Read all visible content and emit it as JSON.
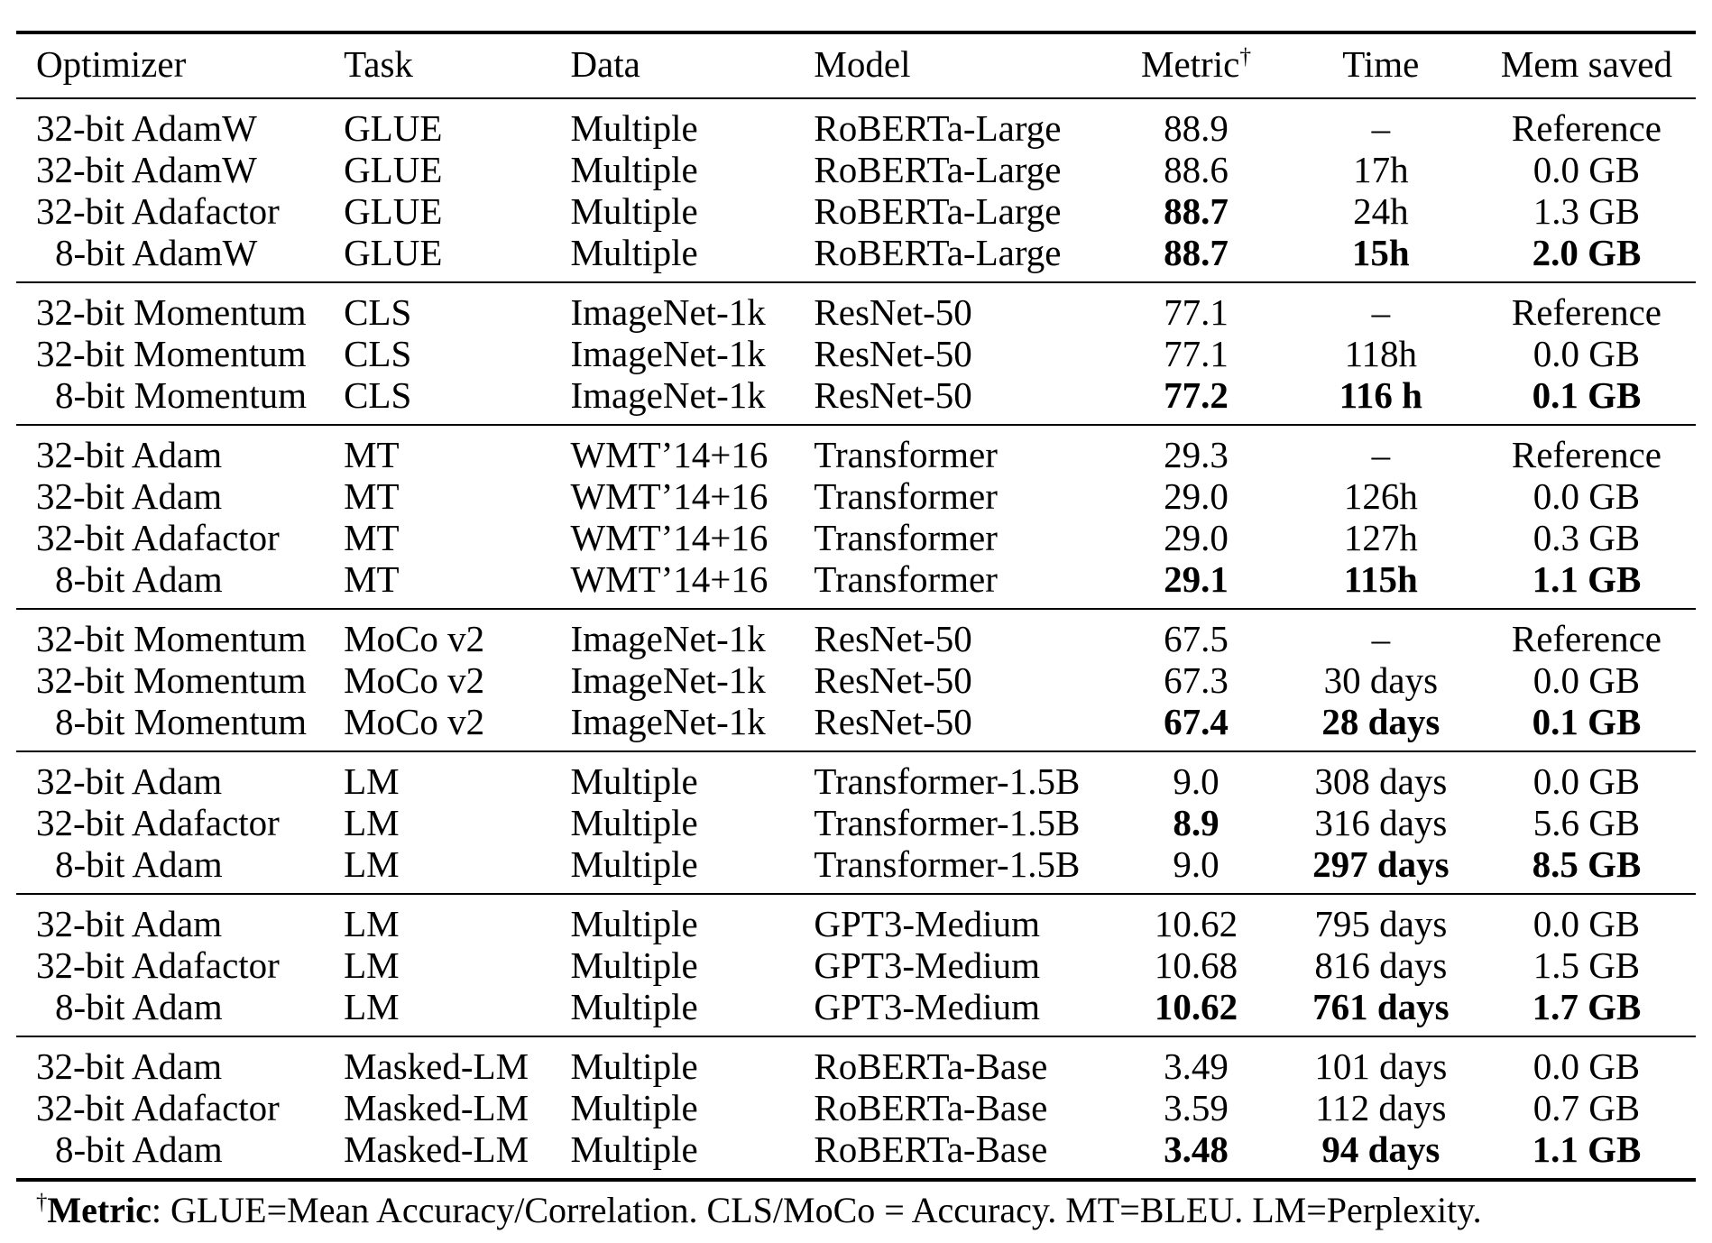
{
  "page": {
    "background": "#ffffff",
    "text_color": "#000000",
    "rule_color": "#000000"
  },
  "table": {
    "columns": [
      {
        "label": "Optimizer",
        "align": "left"
      },
      {
        "label": "Task",
        "align": "left"
      },
      {
        "label": "Data",
        "align": "left"
      },
      {
        "label": "Model",
        "align": "left"
      },
      {
        "label": "Metric",
        "sup": "†",
        "align": "center"
      },
      {
        "label": "Time",
        "align": "center"
      },
      {
        "label": "Mem saved",
        "align": "center"
      }
    ],
    "sections": [
      {
        "id": "glue",
        "rows": [
          [
            "32-bit AdamW",
            "GLUE",
            "Multiple",
            "RoBERTa-Large",
            "88.9",
            "–",
            "Reference"
          ],
          [
            "32-bit AdamW",
            "GLUE",
            "Multiple",
            "RoBERTa-Large",
            "88.6",
            "17h",
            "0.0 GB"
          ],
          [
            "32-bit Adafactor",
            "GLUE",
            "Multiple",
            "RoBERTa-Large",
            {
              "text": "88.7",
              "bold": true
            },
            "24h",
            "1.3 GB"
          ],
          [
            "8-bit AdamW",
            "GLUE",
            "Multiple",
            "RoBERTa-Large",
            {
              "text": "88.7",
              "bold": true
            },
            {
              "text": "15h",
              "bold": true
            },
            {
              "text": "2.0 GB",
              "bold": true
            }
          ]
        ]
      },
      {
        "id": "cls",
        "rows": [
          [
            "32-bit Momentum",
            "CLS",
            "ImageNet-1k",
            "ResNet-50",
            "77.1",
            "–",
            "Reference"
          ],
          [
            "32-bit Momentum",
            "CLS",
            "ImageNet-1k",
            "ResNet-50",
            "77.1",
            "118h",
            "0.0 GB"
          ],
          [
            "8-bit Momentum",
            "CLS",
            "ImageNet-1k",
            "ResNet-50",
            {
              "text": "77.2",
              "bold": true
            },
            {
              "text": "116 h",
              "bold": true
            },
            {
              "text": "0.1 GB",
              "bold": true
            }
          ]
        ]
      },
      {
        "id": "mt",
        "rows": [
          [
            "32-bit Adam",
            "MT",
            "WMT’14+16",
            "Transformer",
            "29.3",
            "–",
            "Reference"
          ],
          [
            "32-bit Adam",
            "MT",
            "WMT’14+16",
            "Transformer",
            "29.0",
            "126h",
            "0.0 GB"
          ],
          [
            "32-bit Adafactor",
            "MT",
            "WMT’14+16",
            "Transformer",
            "29.0",
            "127h",
            "0.3 GB"
          ],
          [
            "8-bit Adam",
            "MT",
            "WMT’14+16",
            "Transformer",
            {
              "text": "29.1",
              "bold": true
            },
            {
              "text": "115h",
              "bold": true
            },
            {
              "text": "1.1 GB",
              "bold": true
            }
          ]
        ]
      },
      {
        "id": "moco-v2",
        "rows": [
          [
            "32-bit Momentum",
            "MoCo v2",
            "ImageNet-1k",
            "ResNet-50",
            "67.5",
            "–",
            "Reference"
          ],
          [
            "32-bit Momentum",
            "MoCo v2",
            "ImageNet-1k",
            "ResNet-50",
            "67.3",
            "30 days",
            "0.0 GB"
          ],
          [
            "8-bit Momentum",
            "MoCo v2",
            "ImageNet-1k",
            "ResNet-50",
            {
              "text": "67.4",
              "bold": true
            },
            {
              "text": "28 days",
              "bold": true
            },
            {
              "text": "0.1 GB",
              "bold": true
            }
          ]
        ]
      },
      {
        "id": "lm-transformer-1-5b",
        "rows": [
          [
            "32-bit Adam",
            "LM",
            "Multiple",
            "Transformer-1.5B",
            "9.0",
            "308 days",
            "0.0 GB"
          ],
          [
            "32-bit Adafactor",
            "LM",
            "Multiple",
            "Transformer-1.5B",
            {
              "text": "8.9",
              "bold": true
            },
            "316 days",
            "5.6 GB"
          ],
          [
            "8-bit Adam",
            "LM",
            "Multiple",
            "Transformer-1.5B",
            "9.0",
            {
              "text": "297 days",
              "bold": true
            },
            {
              "text": "8.5 GB",
              "bold": true
            }
          ]
        ]
      },
      {
        "id": "lm-gpt3-medium",
        "rows": [
          [
            "32-bit Adam",
            "LM",
            "Multiple",
            "GPT3-Medium",
            "10.62",
            "795 days",
            "0.0 GB"
          ],
          [
            "32-bit Adafactor",
            "LM",
            "Multiple",
            "GPT3-Medium",
            "10.68",
            "816 days",
            "1.5 GB"
          ],
          [
            "8-bit Adam",
            "LM",
            "Multiple",
            "GPT3-Medium",
            {
              "text": "10.62",
              "bold": true
            },
            {
              "text": "761 days",
              "bold": true
            },
            {
              "text": "1.7 GB",
              "bold": true
            }
          ]
        ]
      },
      {
        "id": "masked-lm",
        "rows": [
          [
            "32-bit Adam",
            "Masked-LM",
            "Multiple",
            "RoBERTa-Base",
            "3.49",
            "101 days",
            "0.0 GB"
          ],
          [
            "32-bit Adafactor",
            "Masked-LM",
            "Multiple",
            "RoBERTa-Base",
            "3.59",
            "112 days",
            "0.7 GB"
          ],
          [
            "8-bit Adam",
            "Masked-LM",
            "Multiple",
            "RoBERTa-Base",
            {
              "text": "3.48",
              "bold": true
            },
            {
              "text": "94 days",
              "bold": true
            },
            {
              "text": "1.1 GB",
              "bold": true
            }
          ]
        ]
      }
    ]
  },
  "footnote": {
    "sup": "†",
    "term": "Metric",
    "text": ": GLUE=Mean Accuracy/Correlation. CLS/MoCo = Accuracy. MT=BLEU. LM=Perplexity."
  }
}
